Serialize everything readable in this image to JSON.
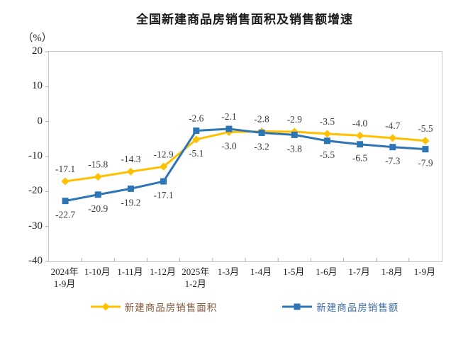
{
  "chart_data": {
    "type": "line",
    "title": "全国新建商品房销售面积及销售额增速",
    "ylabel": "（%）",
    "xlabel": "",
    "categories": [
      "2024年\n1-9月",
      "1-10月",
      "1-11月",
      "1-12月",
      "2025年\n1-2月",
      "1-3月",
      "1-4月",
      "1-5月",
      "1-6月",
      "1-7月",
      "1-8月",
      "1-9月"
    ],
    "series": [
      {
        "id": "area",
        "name": "新建商品房销售面积",
        "color": "#FFC000",
        "label_color": "#8a5a3c",
        "marker": "diamond",
        "values": [
          -17.1,
          -15.8,
          -14.3,
          -12.9,
          -5.1,
          -3.0,
          -2.8,
          -2.9,
          -3.5,
          -4.0,
          -4.7,
          -5.5
        ]
      },
      {
        "id": "amount",
        "name": "新建商品房销售额",
        "color": "#2E75B6",
        "label_color": "#3f6fad",
        "marker": "square",
        "values": [
          -22.7,
          -20.9,
          -19.2,
          -17.1,
          -2.6,
          -2.1,
          -3.2,
          -3.8,
          -5.5,
          -6.5,
          -7.3,
          -7.9
        ]
      }
    ],
    "ylim": [
      -40,
      20
    ],
    "ytick_step": 10,
    "grid": false,
    "legend_position": "bottom"
  }
}
